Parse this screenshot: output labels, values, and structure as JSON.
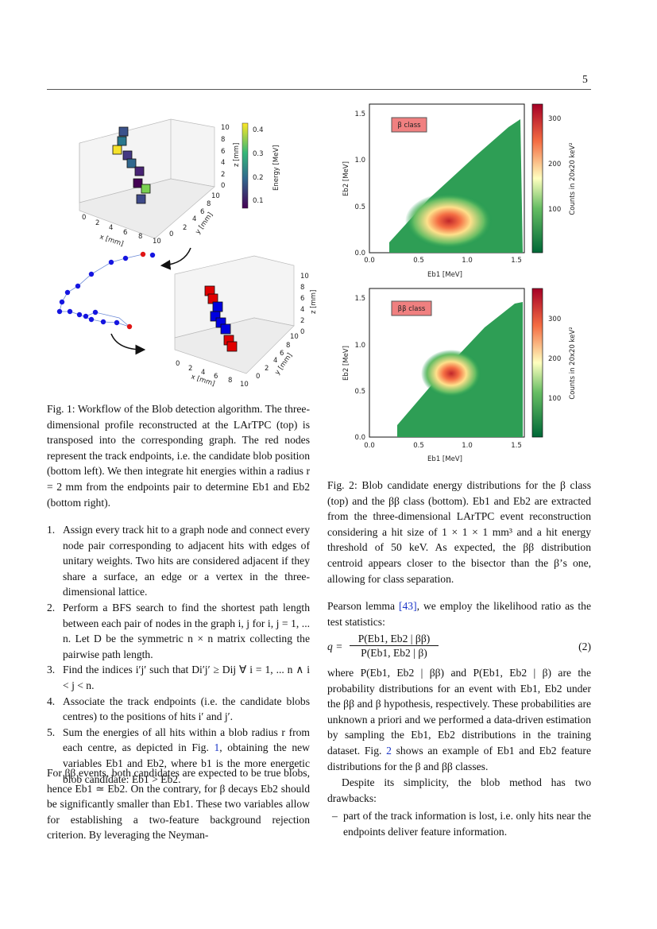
{
  "page_number": "5",
  "figure1": {
    "top_plot": {
      "x_label": "x [mm]",
      "y_label": "y [mm]",
      "z_label": "z [mm]",
      "x_ticks": [
        "0",
        "2",
        "4",
        "6",
        "8",
        "10"
      ],
      "y_ticks": [
        "0",
        "2",
        "4",
        "6",
        "8",
        "10"
      ],
      "z_ticks": [
        "0",
        "2",
        "4",
        "6",
        "8",
        "10"
      ],
      "colorbar_label": "Energy [MeV]",
      "colorbar_ticks": [
        "0.1",
        "0.2",
        "0.3",
        "0.4"
      ]
    },
    "bottom_plot": {
      "x_label": "x [mm]",
      "y_label": "y [mm]",
      "z_label": "z [mm]",
      "x_ticks": [
        "0",
        "2",
        "4",
        "6",
        "8",
        "10"
      ],
      "y_ticks": [
        "0",
        "2",
        "4",
        "6",
        "8",
        "10"
      ],
      "z_ticks": [
        "0",
        "2",
        "4",
        "6",
        "8",
        "10"
      ]
    },
    "caption": "Fig. 1: Workflow of the Blob detection algorithm. The three-dimensional profile reconstructed at the LArTPC (top) is transposed into the corresponding graph. The red nodes represent the track endpoints, i.e. the candidate blob position (bottom left). We then integrate hit energies within a radius r = 2 mm from the endpoints pair to determine Eb1 and Eb2 (bottom right)."
  },
  "figure2": {
    "top_plot": {
      "class_label": "β class",
      "x_label": "Eb1 [MeV]",
      "y_label": "Eb2 [MeV]",
      "x_ticks": [
        "0.0",
        "0.5",
        "1.0",
        "1.5"
      ],
      "y_ticks": [
        "0.0",
        "0.5",
        "1.0",
        "1.5"
      ],
      "colorbar_label": "Counts in 20x20 keV²",
      "colorbar_ticks": [
        "100",
        "200",
        "300"
      ]
    },
    "bottom_plot": {
      "class_label": "ββ class",
      "x_label": "Eb1 [MeV]",
      "y_label": "Eb2 [MeV]",
      "x_ticks": [
        "0.0",
        "0.5",
        "1.0",
        "1.5"
      ],
      "y_ticks": [
        "0.0",
        "0.5",
        "1.0",
        "1.5"
      ],
      "colorbar_label": "Counts in 20x20 keV²",
      "colorbar_ticks": [
        "100",
        "200",
        "300"
      ]
    },
    "caption": "Fig. 2: Blob candidate energy distributions for the β class (top) and the ββ class (bottom). Eb1 and Eb2 are extracted from the three-dimensional LArTPC event reconstruction considering a hit size of 1 × 1 × 1 mm³ and a hit energy threshold of 50 keV. As expected, the ββ distribution centroid appears closer to the bisector than the β’s one, allowing for class separation."
  },
  "steps": [
    {
      "number": "1.",
      "text": "Assign every track hit to a graph node and connect every node pair corresponding to adjacent hits with edges of unitary weights. Two hits are considered adjacent if they share a surface, an edge or a vertex in the three-dimensional lattice."
    },
    {
      "number": "2.",
      "text": "Perform a BFS search to find the shortest path length between each pair of nodes in the graph i, j for i, j = 1, ... n. Let D be the symmetric n × n matrix collecting the pairwise path length."
    },
    {
      "number": "3.",
      "text": "Find the indices i′j′ such that Di′j′ ≥ Dij ∀ i = 1, ... n ∧ i < j < n."
    },
    {
      "number": "4.",
      "text": "Associate the track endpoints (i.e. the candidate blobs centres) to the positions of hits i′ and j′."
    },
    {
      "number": "5.",
      "before": "Sum the energies of all hits within a blob radius r from each centre, as depicted in Fig. ",
      "ref": "1",
      "after": ", obtaining the new variables Eb1 and Eb2, where b1 is the more energetic blob candidate: Eb1 > Eb2."
    }
  ],
  "left_paragraph": "For ββ events, both candidates are expected to be true blobs, hence Eb1 ≃ Eb2. On the contrary, for β decays Eb2 should be significantly smaller than Eb1. These two variables allow for establishing a two-feature background rejection criterion. By leveraging the Neyman-",
  "right_paragraph1": {
    "before": "Pearson lemma ",
    "ref": "[43]",
    "after": ", we employ the likelihood ratio as the test statistics:"
  },
  "equation": {
    "lhs": "q =",
    "numerator": "P(Eb1, Eb2 | ββ)",
    "denominator": "P(Eb1, Eb2 | β)",
    "number": "(2)"
  },
  "right_paragraph2": {
    "before": "where P(Eb1, Eb2 | ββ) and P(Eb1, Eb2 | β) are the probability distributions for an event with Eb1, Eb2 under the ββ and β hypothesis, respectively. These probabilities are unknown a priori and we performed a data-driven estimation by sampling the Eb1, Eb2 distributions in the training dataset. Fig. ",
    "ref": "2",
    "after": " shows an example of Eb1 and Eb2 feature distributions for the β and ββ classes."
  },
  "right_paragraph3": "Despite its simplicity, the blob method has two drawbacks:",
  "drawbacks": [
    {
      "marker": "–",
      "text": "part of the track information is lost, i.e. only hits near the endpoints deliver feature information."
    }
  ]
}
